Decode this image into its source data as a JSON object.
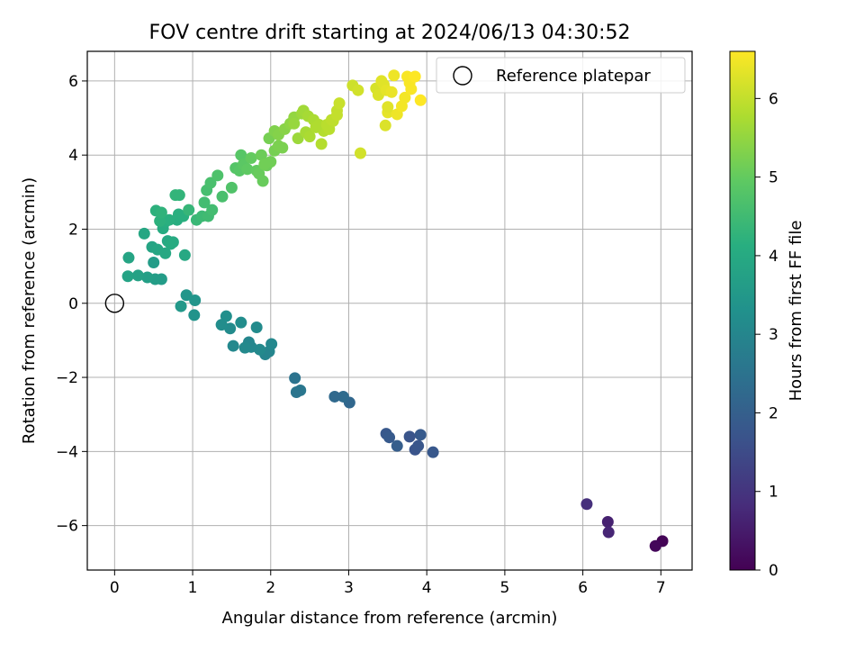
{
  "chart_data": {
    "type": "scatter",
    "title": "FOV centre drift starting at 2024/06/13 04:30:52",
    "xlabel": "Angular distance from reference (arcmin)",
    "ylabel": "Rotation from reference (arcmin)",
    "xlim": [
      -0.35,
      7.4
    ],
    "ylim": [
      -7.2,
      6.8
    ],
    "x_ticks": [
      0,
      1,
      2,
      3,
      4,
      5,
      6,
      7
    ],
    "x_tick_labels": [
      "0",
      "1",
      "2",
      "3",
      "4",
      "5",
      "6",
      "7"
    ],
    "y_ticks": [
      -6,
      -4,
      -2,
      0,
      2,
      4,
      6
    ],
    "y_tick_labels": [
      "−6",
      "−4",
      "−2",
      "0",
      "2",
      "4",
      "6"
    ],
    "grid": true,
    "legend_position": "top-right",
    "legend": [
      "Reference platepar"
    ],
    "reference_point": {
      "x": 0,
      "y": 0
    },
    "colorbar": {
      "label": "Hours from first FF file",
      "range": [
        0,
        6.6
      ],
      "ticks": [
        0,
        1,
        2,
        3,
        4,
        5,
        6
      ],
      "tick_labels": [
        "0",
        "1",
        "2",
        "3",
        "4",
        "5",
        "6"
      ],
      "colormap": "viridis"
    },
    "series": [
      {
        "x": [
          7.02,
          6.93,
          6.32,
          6.33,
          6.05,
          4.08,
          3.85,
          3.89,
          3.92,
          3.78,
          3.62,
          3.48,
          3.52,
          3.01,
          2.93,
          2.82,
          2.38,
          2.33,
          2.31,
          1.98,
          2.01,
          1.93,
          1.82,
          1.86,
          1.75,
          1.72,
          1.67,
          1.62,
          1.52,
          1.48,
          1.43,
          1.37,
          1.03,
          1.02,
          0.92,
          0.85,
          0.6,
          0.52,
          0.5,
          0.42,
          0.3,
          0.17,
          0.18,
          0.38,
          0.48,
          0.55,
          0.68,
          0.75,
          0.9,
          0.65,
          0.72,
          0.62,
          0.8,
          0.65,
          0.82,
          0.88,
          0.7,
          0.53,
          0.58,
          0.6,
          0.78,
          0.83,
          0.95,
          1.05,
          1.12,
          1.2,
          1.25,
          1.15,
          1.18,
          1.23,
          1.38,
          1.32,
          1.5,
          1.55,
          1.6,
          1.62,
          1.65,
          1.7,
          1.75,
          1.82,
          1.85,
          1.9,
          1.95,
          2.0,
          2.05,
          2.1,
          2.15,
          1.88,
          1.92,
          1.98,
          2.05,
          2.1,
          2.18,
          2.25,
          2.3,
          2.4,
          2.42,
          2.48,
          2.55,
          2.62,
          2.68,
          2.75,
          2.8,
          2.85,
          2.88,
          2.3,
          2.35,
          2.45,
          2.5,
          2.58,
          2.65,
          2.72,
          2.78,
          2.85,
          3.05,
          3.12,
          3.15,
          3.35,
          3.38,
          3.42,
          3.45,
          3.48,
          3.5,
          3.55,
          3.58,
          3.62,
          3.68,
          3.72,
          3.75,
          3.78,
          3.8,
          3.85,
          3.92,
          3.47,
          3.5
        ],
        "y": [
          -6.42,
          -6.55,
          -5.9,
          -6.18,
          -5.42,
          -4.02,
          -3.95,
          -3.85,
          -3.55,
          -3.6,
          -3.85,
          -3.52,
          -3.62,
          -2.68,
          -2.52,
          -2.52,
          -2.35,
          -2.4,
          -2.02,
          -1.3,
          -1.1,
          -1.38,
          -0.65,
          -1.25,
          -1.18,
          -1.05,
          -1.2,
          -0.52,
          -1.15,
          -0.68,
          -0.35,
          -0.58,
          0.08,
          -0.32,
          0.22,
          -0.08,
          0.65,
          0.65,
          1.1,
          0.7,
          0.75,
          0.73,
          1.23,
          1.88,
          1.52,
          1.45,
          1.68,
          1.65,
          1.3,
          1.35,
          1.6,
          2.02,
          2.25,
          2.2,
          2.4,
          2.35,
          2.25,
          2.5,
          2.22,
          2.45,
          2.92,
          2.92,
          2.52,
          2.25,
          2.35,
          2.35,
          2.52,
          2.72,
          3.05,
          3.25,
          2.88,
          3.45,
          3.12,
          3.65,
          3.58,
          4.0,
          3.75,
          3.62,
          3.92,
          3.58,
          3.5,
          3.3,
          3.72,
          3.82,
          4.12,
          4.25,
          4.2,
          4.0,
          3.75,
          4.45,
          4.65,
          4.55,
          4.7,
          4.85,
          5.02,
          5.12,
          5.2,
          5.05,
          4.95,
          4.82,
          4.65,
          4.7,
          4.92,
          5.2,
          5.4,
          4.85,
          4.45,
          4.62,
          4.5,
          4.75,
          4.3,
          4.82,
          4.95,
          5.08,
          5.88,
          5.75,
          4.05,
          5.8,
          5.62,
          6.0,
          5.9,
          5.75,
          5.15,
          5.7,
          6.15,
          5.1,
          5.32,
          5.55,
          6.12,
          5.95,
          5.78,
          6.12,
          5.48,
          4.8,
          5.3
        ],
        "hours": [
          0.05,
          0.12,
          0.6,
          0.7,
          0.9,
          1.8,
          1.7,
          1.75,
          1.85,
          1.72,
          1.95,
          1.8,
          1.85,
          2.2,
          2.3,
          2.25,
          2.6,
          2.55,
          2.5,
          3.0,
          3.05,
          2.95,
          3.15,
          3.1,
          3.05,
          3.0,
          3.1,
          3.2,
          3.05,
          3.15,
          3.25,
          3.2,
          3.4,
          3.35,
          3.45,
          3.5,
          3.6,
          3.65,
          3.6,
          3.7,
          3.75,
          3.8,
          3.85,
          3.9,
          3.85,
          3.9,
          3.95,
          4.0,
          3.95,
          3.95,
          4.05,
          4.05,
          4.1,
          4.1,
          4.15,
          4.15,
          4.15,
          4.2,
          4.2,
          4.25,
          4.3,
          4.3,
          4.35,
          4.4,
          4.45,
          4.5,
          4.55,
          4.55,
          4.6,
          4.65,
          4.65,
          4.7,
          4.75,
          4.8,
          4.85,
          4.85,
          4.9,
          4.95,
          5.0,
          5.0,
          5.05,
          5.05,
          5.1,
          5.15,
          5.2,
          5.25,
          5.25,
          5.1,
          5.15,
          5.2,
          5.3,
          5.35,
          5.4,
          5.45,
          5.5,
          5.6,
          5.65,
          5.7,
          5.75,
          5.8,
          5.85,
          5.9,
          5.95,
          6.0,
          6.05,
          5.55,
          5.6,
          5.7,
          5.75,
          5.8,
          5.85,
          5.9,
          5.95,
          6.0,
          6.1,
          6.15,
          6.15,
          6.2,
          6.25,
          6.3,
          6.3,
          6.35,
          6.35,
          6.4,
          6.45,
          6.45,
          6.5,
          6.5,
          6.55,
          6.55,
          6.55,
          6.6,
          6.6,
          6.25,
          6.3
        ]
      }
    ]
  }
}
